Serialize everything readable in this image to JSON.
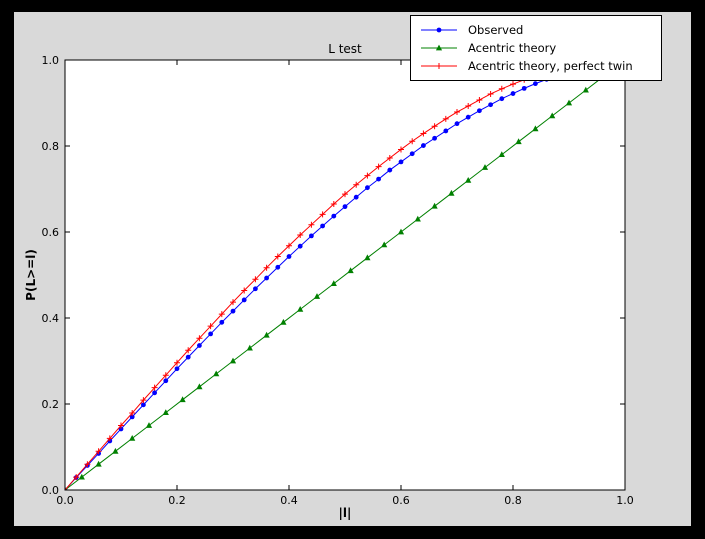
{
  "figure": {
    "window_background": "#000000",
    "figure_facecolor": "#d9d9d9",
    "axes_facecolor": "#ffffff",
    "axes_edgecolor": "#000000"
  },
  "chart_data": {
    "type": "line",
    "title": "L test",
    "xlabel": "|l|",
    "ylabel": "P(L>=l)",
    "xlim": [
      0,
      1
    ],
    "ylim": [
      0,
      1
    ],
    "grid": false,
    "legend_position": "upper right, overlapping top of axes",
    "x_tick_values": [
      0.0,
      0.2,
      0.4,
      0.6,
      0.8,
      1.0
    ],
    "x_tick_labels": [
      "0.0",
      "0.2",
      "0.4",
      "0.6",
      "0.8",
      "1.0"
    ],
    "y_tick_values": [
      0.0,
      0.2,
      0.4,
      0.6,
      0.8,
      1.0
    ],
    "y_tick_labels": [
      "0.0",
      "0.2",
      "0.4",
      "0.6",
      "0.8",
      "1.0"
    ],
    "series": [
      {
        "name": "Observed",
        "color": "#0000ff",
        "marker": "circle",
        "x": [
          0,
          0.02,
          0.04,
          0.06,
          0.08,
          0.1,
          0.12,
          0.14,
          0.16,
          0.18,
          0.2,
          0.22,
          0.24,
          0.26,
          0.28,
          0.3,
          0.32,
          0.34,
          0.36,
          0.38,
          0.4,
          0.42,
          0.44,
          0.46,
          0.48,
          0.5,
          0.52,
          0.54,
          0.56,
          0.58,
          0.6,
          0.62,
          0.64,
          0.66,
          0.68,
          0.7,
          0.72,
          0.74,
          0.76,
          0.78,
          0.8,
          0.82,
          0.84,
          0.86
        ],
        "y": [
          0,
          0.029,
          0.057,
          0.085,
          0.114,
          0.142,
          0.17,
          0.198,
          0.226,
          0.254,
          0.282,
          0.309,
          0.336,
          0.363,
          0.39,
          0.416,
          0.442,
          0.468,
          0.493,
          0.518,
          0.543,
          0.567,
          0.591,
          0.614,
          0.637,
          0.659,
          0.681,
          0.703,
          0.723,
          0.744,
          0.763,
          0.782,
          0.801,
          0.818,
          0.835,
          0.852,
          0.867,
          0.882,
          0.896,
          0.91,
          0.922,
          0.934,
          0.945,
          0.955
        ]
      },
      {
        "name": "Acentric theory",
        "color": "#008000",
        "marker": "triangle",
        "x": [
          0,
          0.03,
          0.06,
          0.09,
          0.12,
          0.15,
          0.18,
          0.21,
          0.24,
          0.27,
          0.3,
          0.33,
          0.36,
          0.39,
          0.42,
          0.45,
          0.48,
          0.51,
          0.54,
          0.57,
          0.6,
          0.63,
          0.66,
          0.69,
          0.72,
          0.75,
          0.78,
          0.81,
          0.84,
          0.87,
          0.9,
          0.93,
          0.96
        ],
        "y": [
          0,
          0.03,
          0.06,
          0.09,
          0.12,
          0.15,
          0.18,
          0.21,
          0.24,
          0.27,
          0.3,
          0.33,
          0.36,
          0.39,
          0.42,
          0.45,
          0.48,
          0.51,
          0.54,
          0.57,
          0.6,
          0.63,
          0.66,
          0.69,
          0.72,
          0.75,
          0.78,
          0.81,
          0.84,
          0.87,
          0.9,
          0.93,
          0.96
        ]
      },
      {
        "name": "Acentric theory, perfect twin",
        "color": "#ff0000",
        "marker": "plus",
        "x": [
          0,
          0.02,
          0.04,
          0.06,
          0.08,
          0.1,
          0.12,
          0.14,
          0.16,
          0.18,
          0.2,
          0.22,
          0.24,
          0.26,
          0.28,
          0.3,
          0.32,
          0.34,
          0.36,
          0.38,
          0.4,
          0.42,
          0.44,
          0.46,
          0.48,
          0.5,
          0.52,
          0.54,
          0.56,
          0.58,
          0.6,
          0.62,
          0.64,
          0.66,
          0.68,
          0.7,
          0.72,
          0.74,
          0.76,
          0.78,
          0.8,
          0.82,
          0.84
        ],
        "y": [
          0,
          0.03,
          0.06,
          0.09,
          0.12,
          0.15,
          0.179,
          0.209,
          0.238,
          0.267,
          0.296,
          0.325,
          0.353,
          0.381,
          0.409,
          0.437,
          0.464,
          0.49,
          0.517,
          0.543,
          0.568,
          0.593,
          0.617,
          0.641,
          0.665,
          0.688,
          0.71,
          0.731,
          0.752,
          0.772,
          0.792,
          0.811,
          0.829,
          0.846,
          0.863,
          0.879,
          0.893,
          0.907,
          0.921,
          0.933,
          0.944,
          0.954,
          0.964
        ]
      }
    ]
  },
  "legend": {
    "entries": [
      "Observed",
      "Acentric theory",
      "Acentric theory, perfect twin"
    ]
  }
}
